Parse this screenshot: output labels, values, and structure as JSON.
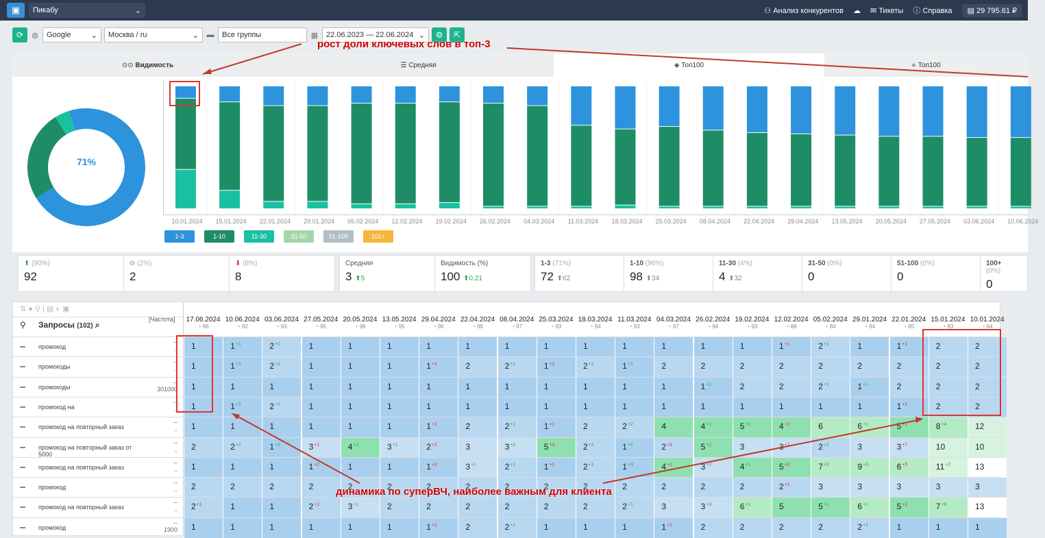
{
  "topbar": {
    "project": "Пикабу",
    "competitors": "Анализ конкурентов",
    "tickets": "Тикеты",
    "help": "Справка",
    "balance": "29 795.61 ₽"
  },
  "toolbar": {
    "engine": "Google",
    "region": "Москва / ru",
    "group": "Все группы",
    "dates": "22.06.2023 — 22.06.2024"
  },
  "tabs": [
    "Видимость",
    "Средняя",
    "Топ100",
    "Топ100"
  ],
  "donut": {
    "label": "71%",
    "segments": [
      71,
      25,
      4
    ]
  },
  "annotations": {
    "top": "рост доли ключевых слов в топ-3",
    "bottom": "динамика по суперВЧ, наиболее важным для клиента"
  },
  "chart_data": {
    "type": "bar",
    "categories": [
      "10.01.2024",
      "15.01.2024",
      "22.01.2024",
      "29.01.2024",
      "05.02.2024",
      "12.02.2024",
      "19.02.2024",
      "26.02.2024",
      "04.03.2024",
      "11.03.2024",
      "18.03.2024",
      "25.03.2024",
      "08.04.2024",
      "22.04.2024",
      "29.04.2024",
      "13.05.2024",
      "20.05.2024",
      "27.05.2024",
      "03.06.2024",
      "10.06.2024"
    ],
    "series": [
      {
        "name": "1-3",
        "values": [
          10,
          13,
          16,
          16,
          14,
          14,
          13,
          14,
          16,
          32,
          35,
          33,
          36,
          38,
          39,
          40,
          41,
          41,
          42,
          42
        ]
      },
      {
        "name": "1-10",
        "values": [
          58,
          72,
          78,
          78,
          82,
          82,
          82,
          84,
          82,
          66,
          62,
          65,
          62,
          60,
          59,
          58,
          57,
          57,
          56,
          56
        ]
      },
      {
        "name": "11-30",
        "values": [
          32,
          15,
          6,
          6,
          4,
          4,
          5,
          2,
          2,
          2,
          3,
          2,
          2,
          2,
          2,
          2,
          2,
          2,
          2,
          2
        ]
      }
    ],
    "legend": [
      "1-3",
      "1-10",
      "11-30",
      "31-50",
      "51-100",
      "101+"
    ],
    "ylim": [
      0,
      100
    ]
  },
  "colors": {
    "c13": "#2d93dc",
    "c110": "#1e8d65",
    "c1130": "#19c1a0",
    "c3150": "#a5d6a7",
    "c51100": "#b0bec5",
    "c101": "#f5b63c"
  },
  "stats_a": [
    {
      "pct": "(90%)",
      "value": "92"
    },
    {
      "pct": "(2%)",
      "value": "2"
    },
    {
      "pct": "(8%)",
      "value": "8"
    }
  ],
  "stats_b": [
    {
      "label": "Средняя",
      "value": "3",
      "delta": "5"
    },
    {
      "label": "Видимость (%)",
      "value": "100",
      "delta": "0.21"
    }
  ],
  "stats_c": [
    {
      "label": "1-3",
      "pct": "(71%)",
      "value": "72",
      "delta": "62"
    },
    {
      "label": "1-10",
      "pct": "(96%)",
      "value": "98",
      "delta": "34"
    },
    {
      "label": "11-30",
      "pct": "(4%)",
      "value": "4",
      "delta": "32"
    },
    {
      "label": "31-50",
      "pct": "(0%)",
      "value": "0",
      "delta": ""
    },
    {
      "label": "51-100",
      "pct": "(0%)",
      "value": "0",
      "delta": ""
    },
    {
      "label": "100+",
      "pct": "(0%)",
      "value": "0",
      "delta": ""
    }
  ],
  "table": {
    "title": "Запросы",
    "count": "(102)",
    "freq": "[Частота]",
    "dates": [
      "17.06.2024",
      "10.06.2024",
      "03.06.2024",
      "27.05.2024",
      "20.05.2024",
      "13.05.2024",
      "29.04.2024",
      "22.04.2024",
      "08.04.2024",
      "25.03.2024",
      "18.03.2024",
      "11.03.2024",
      "04.03.2024",
      "26.02.2024",
      "19.02.2024",
      "12.02.2024",
      "05.02.2024",
      "29.01.2024",
      "22.01.2024",
      "15.01.2024",
      "10.01.2024"
    ],
    "pcts": [
      "96",
      "92",
      "93",
      "95",
      "98",
      "95",
      "96",
      "98",
      "97",
      "93",
      "94",
      "93",
      "87",
      "94",
      "93",
      "88",
      "84",
      "94",
      "85",
      "83",
      "64"
    ],
    "rows": [
      {
        "q": "промокод",
        "f1": "--",
        "f2": "..",
        "cells": [
          "1",
          "1+1",
          "2+1",
          "1",
          "1",
          "1",
          "1",
          "1",
          "1",
          "1",
          "1",
          "1",
          "1",
          "1",
          "1",
          "1+1",
          "2+1",
          "1",
          "1+1",
          "2",
          "2"
        ]
      },
      {
        "q": "промокоды",
        "f1": "--",
        "f2": "..",
        "cells": [
          "1",
          "1+1",
          "2+1",
          "1",
          "1",
          "1",
          "1+1",
          "2",
          "2+1",
          "1+1",
          "2+1",
          "1+1",
          "2",
          "2",
          "2",
          "2",
          "2",
          "2",
          "2",
          "2",
          "2"
        ]
      },
      {
        "q": "промокоды",
        "f1": "--",
        "f2": "301000",
        "cells": [
          "1",
          "1",
          "1",
          "1",
          "1",
          "1",
          "1",
          "1",
          "1",
          "1",
          "1",
          "1",
          "1",
          "1+1",
          "2",
          "2",
          "2+1",
          "1+1",
          "2",
          "2",
          "2"
        ]
      },
      {
        "q": "промокод на",
        "f1": "--",
        "f2": "..",
        "cells": [
          "1",
          "1+1",
          "2+1",
          "1",
          "1",
          "1",
          "1",
          "1",
          "1",
          "1",
          "1",
          "1",
          "1",
          "1",
          "1",
          "1",
          "1",
          "1",
          "1+1",
          "2",
          "2"
        ]
      },
      {
        "q": "промокод на повторный заказ",
        "f1": "--",
        "f2": "..",
        "cells": [
          "1",
          "1",
          "1",
          "1",
          "1",
          "1",
          "1+1",
          "2",
          "2+1",
          "1+1",
          "2",
          "2+2",
          "4",
          "4+1",
          "5+1",
          "4+2",
          "6",
          "6+1",
          "5+1",
          "8+4",
          "12"
        ]
      },
      {
        "q": "промокод на повторный заказ от 5000",
        "f1": "--",
        "f2": "..",
        "cells": [
          "2",
          "2+1",
          "1+2",
          "3+1",
          "4+1",
          "3+1",
          "2+1",
          "3",
          "3+2",
          "5+3",
          "2+1",
          "1+1",
          "2+3",
          "5+2",
          "3",
          "3+1",
          "2+1",
          "3",
          "3+7",
          "10",
          "10"
        ]
      },
      {
        "q": "промокод на повторный заказ",
        "f1": "--",
        "f2": "..",
        "cells": [
          "1",
          "1",
          "1",
          "1+2",
          "1",
          "1",
          "1+2",
          "3+1",
          "2+1",
          "1+1",
          "2+1",
          "1+3",
          "4+1",
          "3+1",
          "4+1",
          "5+2",
          "7+2",
          "9+3",
          "6+5",
          "11+2",
          "13"
        ]
      },
      {
        "q": "промокод",
        "f1": "--",
        "f2": "..",
        "cells": [
          "2",
          "2",
          "2",
          "2",
          "2",
          "2",
          "2",
          "2",
          "2",
          "2",
          "2",
          "2",
          "2",
          "2",
          "2",
          "2+1",
          "3",
          "3",
          "3",
          "3",
          "3"
        ]
      },
      {
        "q": "промокод на повторный заказ",
        "f1": "--",
        "f2": "..",
        "cells": [
          "2+1",
          "1",
          "1",
          "2+1",
          "3+1",
          "2",
          "2",
          "2",
          "2",
          "2",
          "2",
          "2+1",
          "3",
          "3+3",
          "6+1",
          "5",
          "5+1",
          "6+1",
          "5+2",
          "7+6",
          "13"
        ]
      },
      {
        "q": "промокод",
        "f1": "--",
        "f2": "1900",
        "cells": [
          "1",
          "1",
          "1",
          "1",
          "1",
          "1",
          "1+1",
          "2",
          "2+1",
          "1",
          "1",
          "1",
          "1+1",
          "2",
          "2",
          "2",
          "2",
          "2+1",
          "1",
          "1",
          "1"
        ]
      }
    ]
  }
}
